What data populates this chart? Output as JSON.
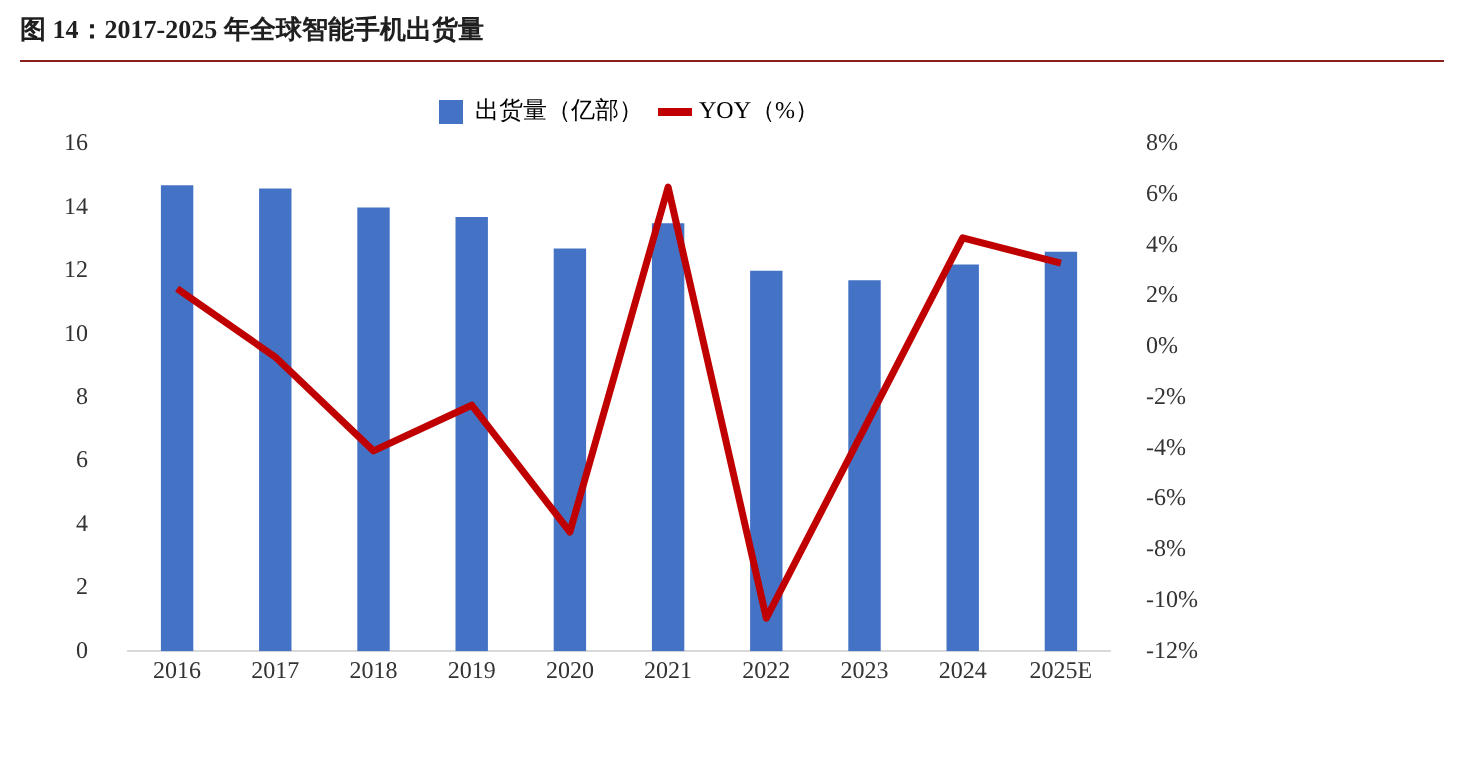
{
  "chart_data": {
    "type": "bar",
    "title": "图 14：2017-2025 年全球智能手机出货量",
    "categories": [
      "2016",
      "2017",
      "2018",
      "2019",
      "2020",
      "2021",
      "2022",
      "2023",
      "2024",
      "2025E"
    ],
    "series": [
      {
        "name": "出货量（亿部）",
        "color": "#4472c4",
        "values": [
          14.7,
          14.6,
          14.0,
          13.7,
          12.7,
          13.5,
          12.0,
          11.7,
          12.2,
          12.6
        ]
      },
      {
        "name": "YOY（%）",
        "type": "line",
        "axis": "y2",
        "color": "#c00000",
        "values": [
          2.3,
          -0.4,
          -4.1,
          -2.3,
          -7.3,
          6.3,
          -10.7,
          -3.2,
          4.3,
          3.3
        ]
      }
    ],
    "ylim": [
      0,
      16
    ],
    "yticks": [
      0,
      2,
      4,
      6,
      8,
      10,
      12,
      14,
      16
    ],
    "y2lim": [
      -12,
      8
    ],
    "y2ticks": [
      {
        "value": -12,
        "label": "-12%"
      },
      {
        "value": -10,
        "label": "-10%"
      },
      {
        "value": -8,
        "label": "-8%"
      },
      {
        "value": -6,
        "label": "-6%"
      },
      {
        "value": -4,
        "label": "-4%"
      },
      {
        "value": -2,
        "label": "-2%"
      },
      {
        "value": 0,
        "label": "0%"
      },
      {
        "value": 2,
        "label": "2%"
      },
      {
        "value": 4,
        "label": "4%"
      },
      {
        "value": 6,
        "label": "6%"
      },
      {
        "value": 8,
        "label": "8%"
      }
    ],
    "grid": false,
    "legend": "top",
    "marker": "none"
  }
}
